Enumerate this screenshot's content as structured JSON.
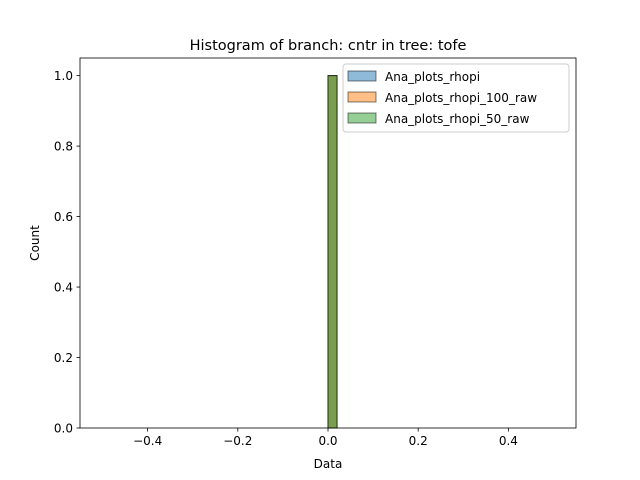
{
  "chart_data": {
    "type": "bar",
    "title": "Histogram of branch: cntr in tree: tofe",
    "xlabel": "Data",
    "ylabel": "Count",
    "xlim": [
      -0.55,
      0.55
    ],
    "ylim": [
      0,
      1.05
    ],
    "xticks": [
      -0.4,
      -0.2,
      0.0,
      0.2,
      0.4
    ],
    "xtick_labels": [
      "−0.4",
      "−0.2",
      "0.0",
      "0.2",
      "0.4"
    ],
    "yticks": [
      0.0,
      0.2,
      0.4,
      0.6,
      0.8,
      1.0
    ],
    "ytick_labels": [
      "0.0",
      "0.2",
      "0.4",
      "0.6",
      "0.8",
      "1.0"
    ],
    "bins": {
      "start": -0.5,
      "end": 0.5,
      "count": 50
    },
    "series": [
      {
        "name": "Ana_plots_rhopi",
        "color": "#1f77b4",
        "counts": [
          0,
          0,
          0,
          0,
          0,
          0,
          0,
          0,
          0,
          0,
          0,
          0,
          0,
          0,
          0,
          0,
          0,
          0,
          0,
          0,
          0,
          0,
          0,
          0,
          0,
          1,
          0,
          0,
          0,
          0,
          0,
          0,
          0,
          0,
          0,
          0,
          0,
          0,
          0,
          0,
          0,
          0,
          0,
          0,
          0,
          0,
          0,
          0,
          0,
          0
        ]
      },
      {
        "name": "Ana_plots_rhopi_100_raw",
        "color": "#ff7f0e",
        "counts": [
          0,
          0,
          0,
          0,
          0,
          0,
          0,
          0,
          0,
          0,
          0,
          0,
          0,
          0,
          0,
          0,
          0,
          0,
          0,
          0,
          0,
          0,
          0,
          0,
          0,
          1,
          0,
          0,
          0,
          0,
          0,
          0,
          0,
          0,
          0,
          0,
          0,
          0,
          0,
          0,
          0,
          0,
          0,
          0,
          0,
          0,
          0,
          0,
          0,
          0
        ]
      },
      {
        "name": "Ana_plots_rhopi_50_raw",
        "color": "#2ca02c",
        "counts": [
          0,
          0,
          0,
          0,
          0,
          0,
          0,
          0,
          0,
          0,
          0,
          0,
          0,
          0,
          0,
          0,
          0,
          0,
          0,
          0,
          0,
          0,
          0,
          0,
          0,
          1,
          0,
          0,
          0,
          0,
          0,
          0,
          0,
          0,
          0,
          0,
          0,
          0,
          0,
          0,
          0,
          0,
          0,
          0,
          0,
          0,
          0,
          0,
          0,
          0
        ]
      }
    ],
    "alpha": 0.5,
    "edgecolor": "#000000",
    "legend_position": "top-right",
    "grid": false
  }
}
